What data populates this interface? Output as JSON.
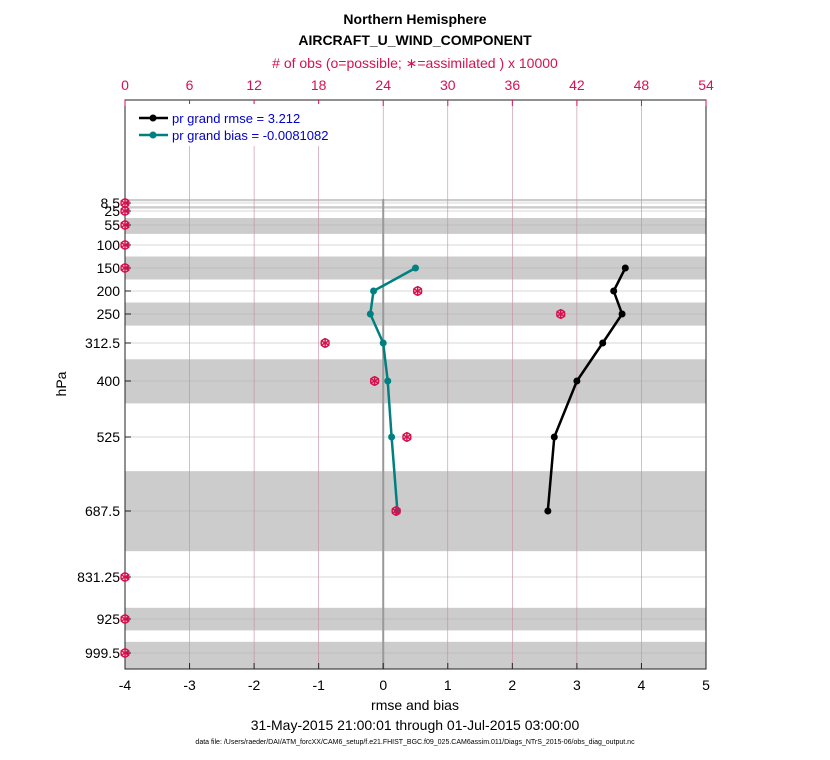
{
  "chart_data": {
    "type": "line",
    "title": "Northern Hemisphere",
    "subtitle": "AIRCRAFT_U_WIND_COMPONENT",
    "top_axis_label": "# of obs (o=possible; ∗=assimilated ) x 10000",
    "xlabel": "rmse and bias",
    "ylabel": "hPa",
    "date_range": "31-May-2015 21:00:01 through 01-Jul-2015 03:00:00",
    "data_file": "data file: /Users/raeder/DAI/ATM_forcXX/CAM6_setup/f.e21.FHIST_BGC.f09_025.CAM6assim.011/Diags_NTrS_2015-06/obs_diag_output.nc",
    "xlim": [
      -4,
      5
    ],
    "xticks": [
      "-4",
      "-3",
      "-2",
      "-1",
      "0",
      "1",
      "2",
      "3",
      "4",
      "5"
    ],
    "top_xlim": [
      0,
      54
    ],
    "top_ticks": [
      "0",
      "6",
      "12",
      "18",
      "24",
      "30",
      "36",
      "42",
      "48",
      "54"
    ],
    "y_levels": [
      "8.5",
      "25",
      "55",
      "100",
      "150",
      "200",
      "250",
      "312.5",
      "400",
      "525",
      "687.5",
      "831.25",
      "925",
      "999.5"
    ],
    "y_range_hpa": [
      0,
      1025
    ],
    "y_reversed": true,
    "shaded_bands_hpa": [
      [
        0,
        5
      ],
      [
        15,
        20
      ],
      [
        40,
        75
      ],
      [
        125,
        175
      ],
      [
        225,
        275
      ],
      [
        350,
        450
      ],
      [
        600,
        775
      ],
      [
        900,
        950
      ],
      [
        975,
        1025
      ]
    ],
    "legend_placement": "top-left",
    "series": [
      {
        "name": "pr grand rmse = 3.212",
        "color": "#000000",
        "pressure": [
          150,
          200,
          250,
          312.5,
          400,
          525,
          687.5
        ],
        "values": [
          3.75,
          3.57,
          3.7,
          3.4,
          3.0,
          2.65,
          2.55
        ]
      },
      {
        "name": "pr grand bias = -0.0081082",
        "color": "#008080",
        "pressure": [
          150,
          200,
          250,
          312.5,
          400,
          525,
          687.5
        ],
        "values": [
          0.5,
          -0.15,
          -0.2,
          0.0,
          0.07,
          0.13,
          0.22
        ]
      }
    ],
    "obs_counts": {
      "color": "#d6124e",
      "pressure": [
        8.5,
        25,
        55,
        100,
        150,
        200,
        250,
        312.5,
        400,
        525,
        687.5,
        831.25,
        925,
        999.5
      ],
      "possible": [
        0,
        0,
        0,
        0,
        0,
        27.2,
        40.5,
        18.6,
        23.2,
        26.2,
        25.2,
        0,
        0,
        0
      ],
      "assimilated": [
        0,
        0,
        0,
        0,
        0,
        27.2,
        40.5,
        18.6,
        23.2,
        26.2,
        25.2,
        0,
        0,
        0
      ]
    },
    "grid": true
  }
}
